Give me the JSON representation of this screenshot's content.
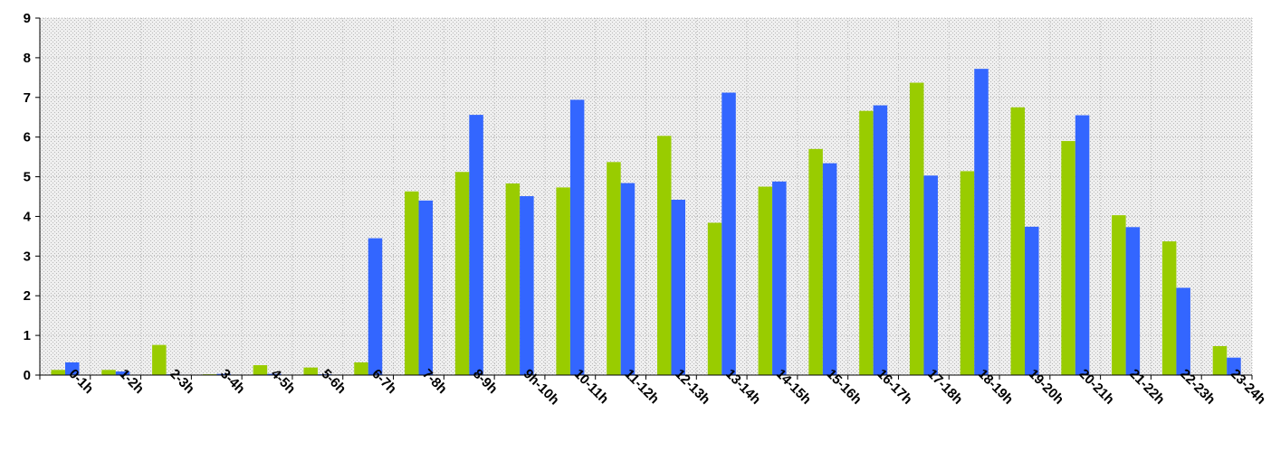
{
  "chart_data": {
    "type": "bar",
    "title": "",
    "xlabel": "",
    "ylabel": "",
    "ylim": [
      0,
      9
    ],
    "yticks": [
      0,
      1,
      2,
      3,
      4,
      5,
      6,
      7,
      8,
      9
    ],
    "grid": true,
    "legend": "none",
    "categories": [
      "0-1h",
      "1-2h",
      "2-3h",
      "3-4h",
      "4-5h",
      "5-6h",
      "6-7h",
      "7-8h",
      "8-9h",
      "9h-10h",
      "10-11h",
      "11-12h",
      "12-13h",
      "13-14h",
      "14-15h",
      "15-16h",
      "16-17h",
      "17-18h",
      "18-19h",
      "19-20h",
      "20-21h",
      "21-22h",
      "22-23h",
      "23-24h"
    ],
    "series": [
      {
        "color": "#99cc00",
        "values": [
          0.13,
          0.13,
          0.76,
          0.02,
          0.25,
          0.19,
          0.32,
          4.63,
          5.12,
          4.83,
          4.73,
          5.37,
          6.03,
          3.84,
          4.75,
          5.7,
          6.66,
          7.37,
          5.14,
          6.75,
          5.9,
          4.03,
          3.37,
          0.73
        ]
      },
      {
        "color": "#3366ff",
        "values": [
          0.32,
          0.09,
          0.02,
          0.03,
          0.03,
          0.02,
          3.45,
          4.4,
          6.56,
          4.51,
          6.94,
          4.84,
          4.42,
          7.12,
          4.88,
          5.34,
          6.8,
          5.03,
          7.72,
          3.74,
          6.55,
          3.73,
          2.2,
          0.44
        ]
      }
    ]
  }
}
